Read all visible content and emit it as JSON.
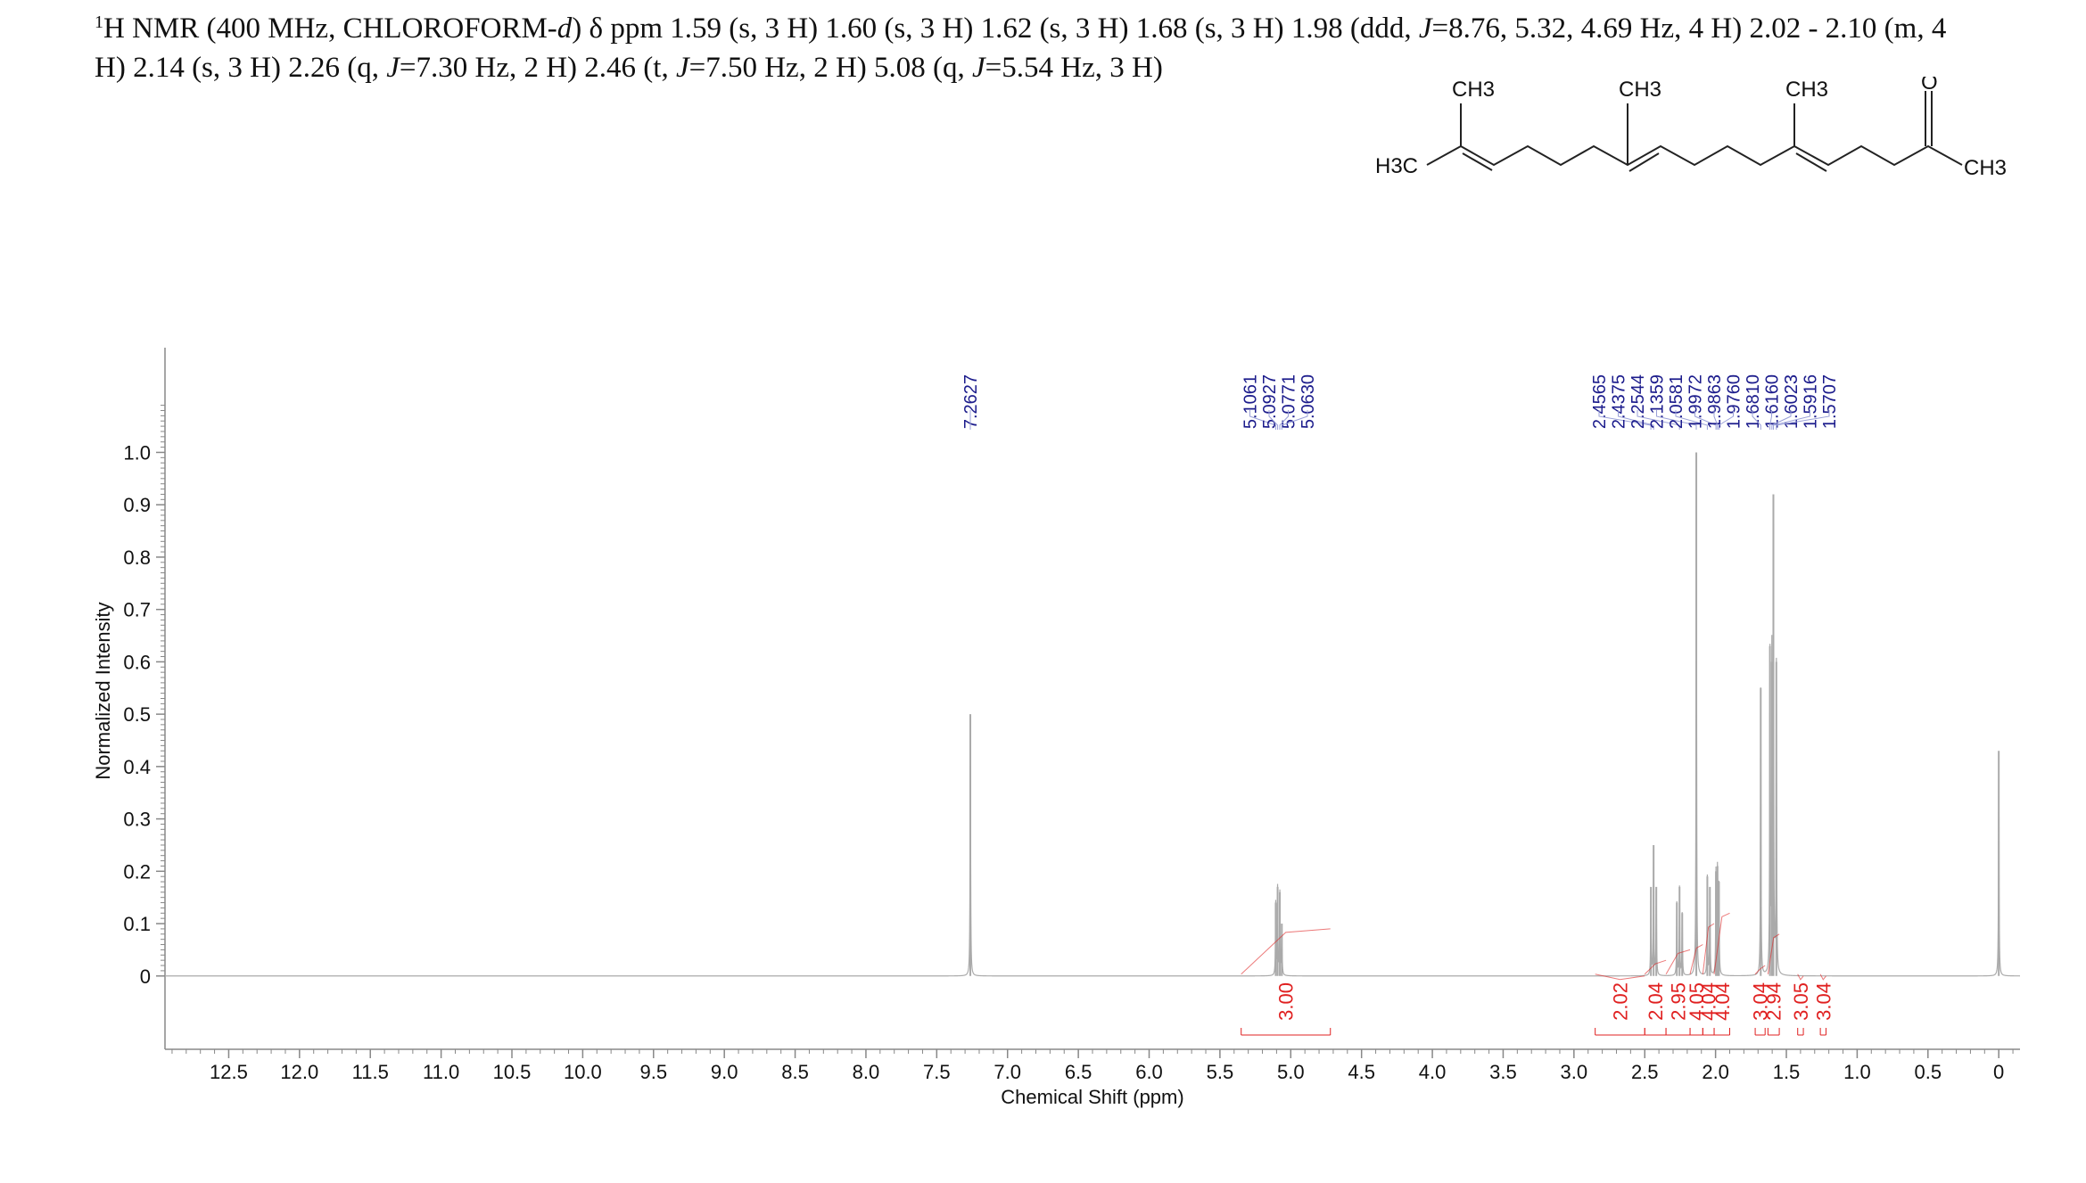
{
  "header": {
    "nucleus_sup": "1",
    "text_main": "H NMR (400 MHz, CHLOROFORM-",
    "solvent_d": "d",
    "text_after_solvent": ") ",
    "delta": "δ",
    "peaks_line": " ppm 1.59 (s, 3 H) 1.60 (s, 3 H) 1.62 (s, 3 H) 1.68 (s, 3 H) 1.98 (ddd, ",
    "j1_label": "J",
    "j1_text": "=8.76, 5.32, 4.69 Hz, 4 H) 2.02 - 2.10 (m, 4",
    "line2_start": "H) 2.14 (s, 3 H) 2.26 (q, ",
    "j2_label": "J",
    "j2_text": "=7.30 Hz, 2 H) 2.46 (t, ",
    "j3_label": "J",
    "j3_text": "=7.50 Hz, 2 H) 5.08 (q, ",
    "j4_label": "J",
    "j4_text": "=5.54 Hz, 3 H)"
  },
  "structure": {
    "labels": [
      "CH3",
      "CH3",
      "CH3",
      "O",
      "H3C",
      "CH3"
    ]
  },
  "chart_data": {
    "type": "line",
    "title": "",
    "xlabel": "Chemical Shift (ppm)",
    "ylabel": "Normalized Intensity",
    "xlim": [
      12.95,
      -0.15
    ],
    "x_reversed": true,
    "ylim": [
      -0.14,
      1.2
    ],
    "x_ticks": [
      12.5,
      12.0,
      11.5,
      11.0,
      10.5,
      10.0,
      9.5,
      9.0,
      8.5,
      8.0,
      7.5,
      7.0,
      6.5,
      6.0,
      5.5,
      5.0,
      4.5,
      4.0,
      3.5,
      3.0,
      2.5,
      2.0,
      1.5,
      1.0,
      0.5,
      0
    ],
    "x_tick_labels": [
      "12.5",
      "12.0",
      "11.5",
      "11.0",
      "10.5",
      "10.0",
      "9.5",
      "9.0",
      "8.5",
      "8.0",
      "7.5",
      "7.0",
      "6.5",
      "6.0",
      "5.5",
      "5.0",
      "4.5",
      "4.0",
      "3.5",
      "3.0",
      "2.5",
      "2.0",
      "1.5",
      "1.0",
      "0.5",
      "0"
    ],
    "y_ticks": [
      0,
      0.1,
      0.2,
      0.3,
      0.4,
      0.5,
      0.6,
      0.7,
      0.8,
      0.9,
      1.0
    ],
    "y_tick_labels": [
      "0",
      "0.1",
      "0.2",
      "0.3",
      "0.4",
      "0.5",
      "0.6",
      "0.7",
      "0.8",
      "0.9",
      "1.0"
    ],
    "peaks": [
      {
        "ppm": 7.2627,
        "height": 0.5
      },
      {
        "ppm": 5.1061,
        "height": 0.14
      },
      {
        "ppm": 5.0927,
        "height": 0.17
      },
      {
        "ppm": 5.0771,
        "height": 0.16
      },
      {
        "ppm": 5.063,
        "height": 0.1
      },
      {
        "ppm": 2.4565,
        "height": 0.17
      },
      {
        "ppm": 2.4375,
        "height": 0.25
      },
      {
        "ppm": 2.4185,
        "height": 0.17
      },
      {
        "ppm": 2.2734,
        "height": 0.14
      },
      {
        "ppm": 2.2544,
        "height": 0.17
      },
      {
        "ppm": 2.2354,
        "height": 0.12
      },
      {
        "ppm": 2.1359,
        "height": 1.0
      },
      {
        "ppm": 2.0581,
        "height": 0.19
      },
      {
        "ppm": 2.04,
        "height": 0.17
      },
      {
        "ppm": 1.9972,
        "height": 0.2
      },
      {
        "ppm": 1.9863,
        "height": 0.21
      },
      {
        "ppm": 1.976,
        "height": 0.18
      },
      {
        "ppm": 1.681,
        "height": 0.55
      },
      {
        "ppm": 1.616,
        "height": 0.63
      },
      {
        "ppm": 1.6023,
        "height": 0.6
      },
      {
        "ppm": 1.5916,
        "height": 0.92
      },
      {
        "ppm": 1.5707,
        "height": 0.6
      },
      {
        "ppm": 0.0,
        "height": 0.43
      }
    ],
    "peak_labels": {
      "group1": [
        "7.2627"
      ],
      "group2": [
        "5.1061",
        "5.0927",
        "5.0771",
        "5.0630"
      ],
      "group3": [
        "2.4565",
        "2.4375",
        "2.2544",
        "2.1359",
        "2.0581",
        "1.9972",
        "1.9863",
        "1.9760",
        "1.6810",
        "1.6160",
        "1.6023",
        "1.5916",
        "1.5707"
      ]
    },
    "group3_targets": [
      2.4565,
      2.4375,
      2.2544,
      2.1359,
      2.0581,
      1.9972,
      1.9863,
      1.976,
      1.681,
      1.616,
      1.6023,
      1.5916,
      1.5707
    ],
    "integrals": [
      {
        "from": 5.35,
        "to": 4.72,
        "value": "3.00",
        "level": 0.09
      },
      {
        "from": 2.85,
        "to": 2.5,
        "value": "2.02",
        "level": 0.0
      },
      {
        "from": 2.5,
        "to": 2.35,
        "value": "2.04",
        "level": 0.03
      },
      {
        "from": 2.35,
        "to": 2.18,
        "value": "2.95",
        "level": 0.05
      },
      {
        "from": 2.18,
        "to": 2.09,
        "value": "4.05",
        "level": 0.06
      },
      {
        "from": 2.09,
        "to": 2.01,
        "value": "4.04",
        "level": 0.1
      },
      {
        "from": 2.01,
        "to": 1.9,
        "value": "4.04",
        "level": 0.12
      },
      {
        "from": 1.72,
        "to": 1.65,
        "value": "3.04",
        "level": 0.02
      },
      {
        "from": 1.63,
        "to": 1.55,
        "value": "2.94",
        "level": 0.08
      },
      {
        "from": 1.42,
        "to": 1.38,
        "value": "3.05",
        "level": 0.0
      },
      {
        "from": 1.26,
        "to": 1.22,
        "value": "3.04",
        "level": 0.0
      }
    ],
    "colors": {
      "spectrum": "#aaaaaa",
      "peak_label": "#1c1c8c",
      "integral": "#e02020",
      "axis": "#888888",
      "text": "#111111"
    }
  }
}
